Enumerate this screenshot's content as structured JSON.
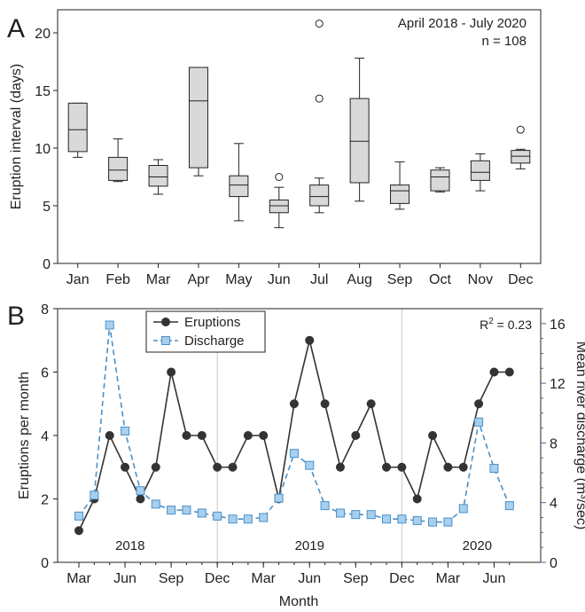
{
  "panel_a_letter": "A",
  "panel_b_letter": "B",
  "chart_data": [
    {
      "type": "box",
      "panel": "A",
      "ylabel": "Eruption interval (days)",
      "ylim": [
        0,
        22
      ],
      "yticks": [
        0,
        5,
        10,
        15,
        20
      ],
      "annotation_lines": [
        "April 2018 - July 2020",
        "n = 108"
      ],
      "categories": [
        "Jan",
        "Feb",
        "Mar",
        "Apr",
        "May",
        "Jun",
        "Jul",
        "Aug",
        "Sep",
        "Oct",
        "Nov",
        "Dec"
      ],
      "boxes": [
        {
          "whislo": 9.2,
          "q1": 9.7,
          "med": 11.6,
          "q3": 13.9,
          "whishi": 13.9,
          "fliers": []
        },
        {
          "whislo": 7.1,
          "q1": 7.2,
          "med": 8.1,
          "q3": 9.2,
          "whishi": 10.8,
          "fliers": []
        },
        {
          "whislo": 6.0,
          "q1": 6.7,
          "med": 7.5,
          "q3": 8.5,
          "whishi": 9.0,
          "fliers": []
        },
        {
          "whislo": 7.6,
          "q1": 8.3,
          "med": 14.1,
          "q3": 17.0,
          "whishi": 17.0,
          "fliers": []
        },
        {
          "whislo": 3.7,
          "q1": 5.8,
          "med": 6.8,
          "q3": 7.6,
          "whishi": 10.4,
          "fliers": []
        },
        {
          "whislo": 3.1,
          "q1": 4.4,
          "med": 5.0,
          "q3": 5.5,
          "whishi": 6.6,
          "fliers": [
            7.5
          ]
        },
        {
          "whislo": 4.4,
          "q1": 5.0,
          "med": 5.8,
          "q3": 6.8,
          "whishi": 7.4,
          "fliers": [
            14.3,
            20.8
          ]
        },
        {
          "whislo": 5.4,
          "q1": 7.0,
          "med": 10.6,
          "q3": 14.3,
          "whishi": 17.8,
          "fliers": []
        },
        {
          "whislo": 4.7,
          "q1": 5.2,
          "med": 6.3,
          "q3": 6.8,
          "whishi": 8.8,
          "fliers": []
        },
        {
          "whislo": 6.2,
          "q1": 6.3,
          "med": 7.5,
          "q3": 8.1,
          "whishi": 8.3,
          "fliers": []
        },
        {
          "whislo": 6.3,
          "q1": 7.2,
          "med": 7.9,
          "q3": 8.9,
          "whishi": 9.5,
          "fliers": []
        },
        {
          "whislo": 8.2,
          "q1": 8.7,
          "med": 9.3,
          "q3": 9.8,
          "whishi": 9.9,
          "fliers": [
            11.6
          ]
        }
      ],
      "box_fill": "#d9d9d9",
      "grid": false
    },
    {
      "type": "line",
      "panel": "B",
      "xlabel": "Month",
      "ylabel": "Eruptions per month",
      "y2label": "Mean river discharge (m³/sec)",
      "ylim": [
        0,
        8
      ],
      "yticks": [
        0,
        2,
        4,
        6,
        8
      ],
      "y2lim": [
        0,
        17
      ],
      "y2ticks": [
        0,
        4,
        8,
        12,
        16
      ],
      "x_tick_labels": [
        "Mar",
        "Jun",
        "Sep",
        "Dec",
        "Mar",
        "Jun",
        "Sep",
        "Dec",
        "Mar",
        "Jun"
      ],
      "x_tick_months": [
        "2018-03",
        "2018-06",
        "2018-09",
        "2018-12",
        "2019-03",
        "2019-06",
        "2019-09",
        "2019-12",
        "2020-03",
        "2020-06"
      ],
      "year_labels": [
        "2018",
        "2019",
        "2020"
      ],
      "year_dividers": [
        "2018-12",
        "2019-12"
      ],
      "r2_label": "R",
      "r2_sup": "2",
      "r2_value": " = 0.23",
      "months": [
        "2018-03",
        "2018-04",
        "2018-05",
        "2018-06",
        "2018-07",
        "2018-08",
        "2018-09",
        "2018-10",
        "2018-11",
        "2018-12",
        "2019-01",
        "2019-02",
        "2019-03",
        "2019-04",
        "2019-05",
        "2019-06",
        "2019-07",
        "2019-08",
        "2019-09",
        "2019-10",
        "2019-11",
        "2019-12",
        "2020-01",
        "2020-02",
        "2020-03",
        "2020-04",
        "2020-05",
        "2020-06",
        "2020-07"
      ],
      "series": [
        {
          "name": "Eruptions",
          "axis": "left",
          "color": "#333333",
          "marker": "circle",
          "values": [
            1,
            2,
            4,
            3,
            2,
            3,
            6,
            4,
            4,
            3,
            3,
            4,
            4,
            2,
            5,
            7,
            5,
            3,
            4,
            5,
            3,
            3,
            2,
            4,
            3,
            3,
            5,
            6,
            6
          ]
        },
        {
          "name": "Discharge",
          "axis": "right",
          "color": "#4a90c8",
          "marker_fill": "#a8d0ee",
          "marker": "square",
          "dashed": true,
          "values": [
            3.1,
            4.5,
            15.9,
            8.8,
            4.8,
            3.9,
            3.5,
            3.5,
            3.3,
            3.1,
            2.9,
            2.9,
            3.0,
            4.3,
            7.3,
            6.5,
            3.8,
            3.3,
            3.2,
            3.2,
            2.9,
            2.9,
            2.8,
            2.7,
            2.7,
            3.6,
            9.4,
            6.3,
            3.8
          ]
        }
      ],
      "grid": false
    }
  ]
}
